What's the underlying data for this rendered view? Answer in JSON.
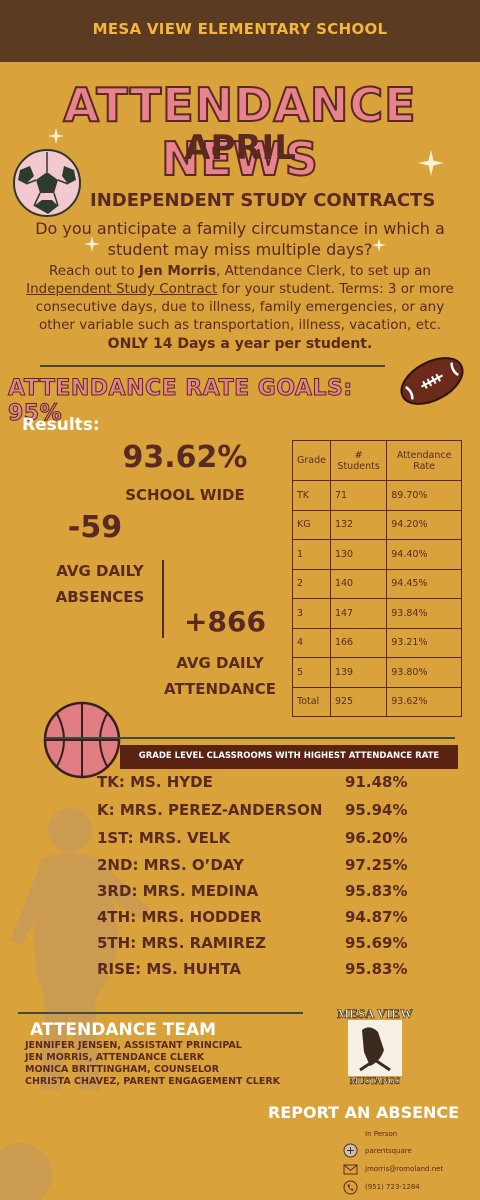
{
  "header": {
    "school": "MESA VIEW ELEMENTARY  SCHOOL"
  },
  "title": "ATTENDANCE NEWS",
  "month": "APRIL",
  "isc": {
    "heading": "INDEPENDENT STUDY CONTRACTS",
    "question": "Do you anticipate a family circumstance in which a student may miss multiple days?",
    "pre": "Reach out to ",
    "name": "Jen Morris",
    "mid": ", Attendance Clerk, to set up an ",
    "link": "Independent Study Contract",
    "post": " for your student.  Terms: 3 or more consecutive days, due to illness, family emergencies, or any other variable such as transportation, illness, vacation, etc.",
    "limit": "ONLY 14 Days a year per student."
  },
  "goal": "ATTENDANCE RATE GOALS: 95%",
  "results": {
    "label": "Results:",
    "school_rate": "93.62%",
    "school_label": "SCHOOL WIDE",
    "absences_value": "-59",
    "absences_label_1": "AVG DAILY",
    "absences_label_2": "ABSENCES",
    "attendance_value": "+866",
    "attendance_label_1": "AVG DAILY",
    "attendance_label_2": "ATTENDANCE"
  },
  "table": {
    "headers": [
      "Grade",
      "# Students",
      "Attendance Rate"
    ],
    "rows": [
      [
        "TK",
        "71",
        "89.70%"
      ],
      [
        "KG",
        "132",
        "94.20%"
      ],
      [
        "1",
        "130",
        "94.40%"
      ],
      [
        "2",
        "140",
        "94.45%"
      ],
      [
        "3",
        "147",
        "93.84%"
      ],
      [
        "4",
        "166",
        "93.21%"
      ],
      [
        "5",
        "139",
        "93.80%"
      ],
      [
        "Total",
        "925",
        "93.62%"
      ]
    ]
  },
  "classrooms": {
    "banner": "GRADE LEVEL CLASSROOMS WITH HIGHEST ATTENDANCE RATE",
    "items": [
      {
        "name": "TK: MS. HYDE",
        "rate": "91.48%"
      },
      {
        "name": "K: MRS. PEREZ-ANDERSON",
        "rate": "95.94%"
      },
      {
        "name": "1ST: MRS. VELK",
        "rate": "96.20%"
      },
      {
        "name": "2ND: MRS. O’DAY",
        "rate": "97.25%"
      },
      {
        "name": "3RD: MRS. MEDINA",
        "rate": "95.83%"
      },
      {
        "name": "4TH: MRS. HODDER",
        "rate": "94.87%"
      },
      {
        "name": "5TH: MRS. RAMIREZ",
        "rate": "95.69%"
      },
      {
        "name": "RISE: MS. HUHTA",
        "rate": "95.83%"
      }
    ]
  },
  "team": {
    "heading": "ATTENDANCE TEAM",
    "members": [
      "JENNIFER JENSEN, ASSISTANT PRINCIPAL",
      "JEN MORRIS, ATTENDANCE CLERK",
      "MONICA BRITTINGHAM, COUNSELOR",
      "CHRISTA CHAVEZ, PARENT ENGAGEMENT CLERK"
    ]
  },
  "logo": {
    "top": "MESA VIEW",
    "bottom": "MUSTANGS"
  },
  "report": {
    "heading": "REPORT AN ABSENCE",
    "in_person": "In Person",
    "web": "parentsquare",
    "email": "jmorris@romoland.net",
    "phone": "(951) 723-1284"
  },
  "colors": {
    "background": "#d9a23a",
    "header": "#5b3b21",
    "title_pink": "#e8838e",
    "text_brown": "#5a2a22"
  }
}
